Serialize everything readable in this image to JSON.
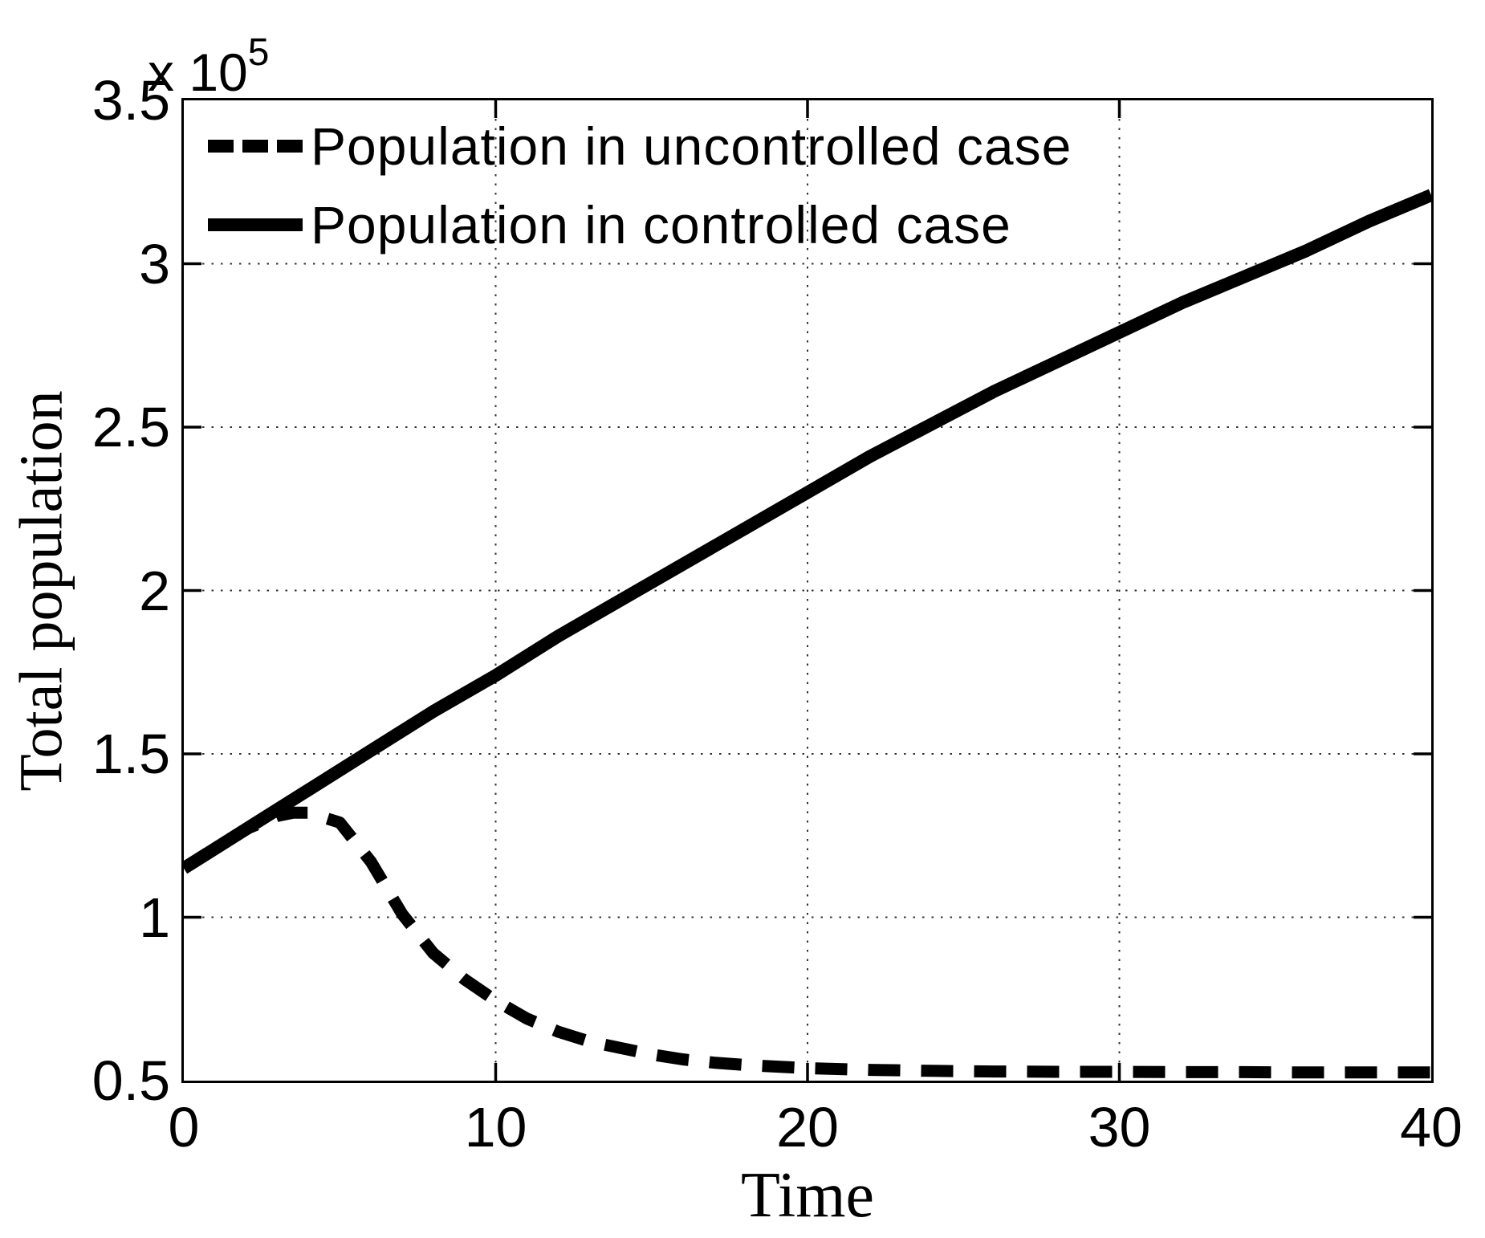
{
  "axes": {
    "xlabel": "Time",
    "ylabel": "Total population",
    "y_multiplier_base": "x 10",
    "y_multiplier_exponent": "5",
    "line_color": "#000000",
    "grid_color": "#333333",
    "background": "#ffffff"
  },
  "legend": {
    "position": "top-left",
    "items": [
      {
        "label": "Population in uncontrolled case",
        "style": "dashed"
      },
      {
        "label": "Population in controlled case",
        "style": "solid"
      }
    ]
  },
  "chart_data": {
    "type": "line",
    "title": "",
    "xlabel": "Time",
    "ylabel": "Total population",
    "y_scale_factor": "1e5",
    "xlim": [
      0,
      40
    ],
    "ylim": [
      0.5,
      3.5
    ],
    "x_ticks": [
      0,
      10,
      20,
      30,
      40
    ],
    "x_tick_labels": [
      "0",
      "10",
      "20",
      "30",
      "40"
    ],
    "y_ticks": [
      0.5,
      1,
      1.5,
      2,
      2.5,
      3,
      3.5
    ],
    "y_tick_labels": [
      "0.5",
      "1",
      "1.5",
      "2",
      "2.5",
      "3",
      "3.5"
    ],
    "grid": true,
    "legend_position": "top-left",
    "series": [
      {
        "name": "Population in uncontrolled case",
        "style": "dashed",
        "color": "#000000",
        "x": [
          0,
          1,
          2,
          3,
          3.5,
          4,
          5,
          6,
          7,
          8,
          9,
          10,
          11,
          12,
          13,
          14,
          15,
          16,
          17,
          18,
          19,
          20,
          22,
          24,
          26,
          28,
          30,
          32,
          34,
          36,
          38,
          40
        ],
        "y": [
          1.15,
          1.21,
          1.27,
          1.31,
          1.32,
          1.32,
          1.29,
          1.17,
          1.01,
          0.89,
          0.81,
          0.745,
          0.69,
          0.65,
          0.62,
          0.6,
          0.58,
          0.565,
          0.555,
          0.548,
          0.543,
          0.538,
          0.533,
          0.53,
          0.528,
          0.527,
          0.527,
          0.526,
          0.526,
          0.525,
          0.525,
          0.525
        ]
      },
      {
        "name": "Population in controlled case",
        "style": "solid",
        "color": "#000000",
        "x": [
          0,
          2,
          4,
          6,
          8,
          10,
          12,
          14,
          16,
          18,
          20,
          22,
          24,
          26,
          28,
          30,
          32,
          34,
          36,
          38,
          40
        ],
        "y": [
          1.15,
          1.27,
          1.39,
          1.51,
          1.63,
          1.74,
          1.86,
          1.97,
          2.08,
          2.19,
          2.3,
          2.41,
          2.51,
          2.61,
          2.7,
          2.79,
          2.88,
          2.96,
          3.04,
          3.13,
          3.21
        ]
      }
    ]
  }
}
